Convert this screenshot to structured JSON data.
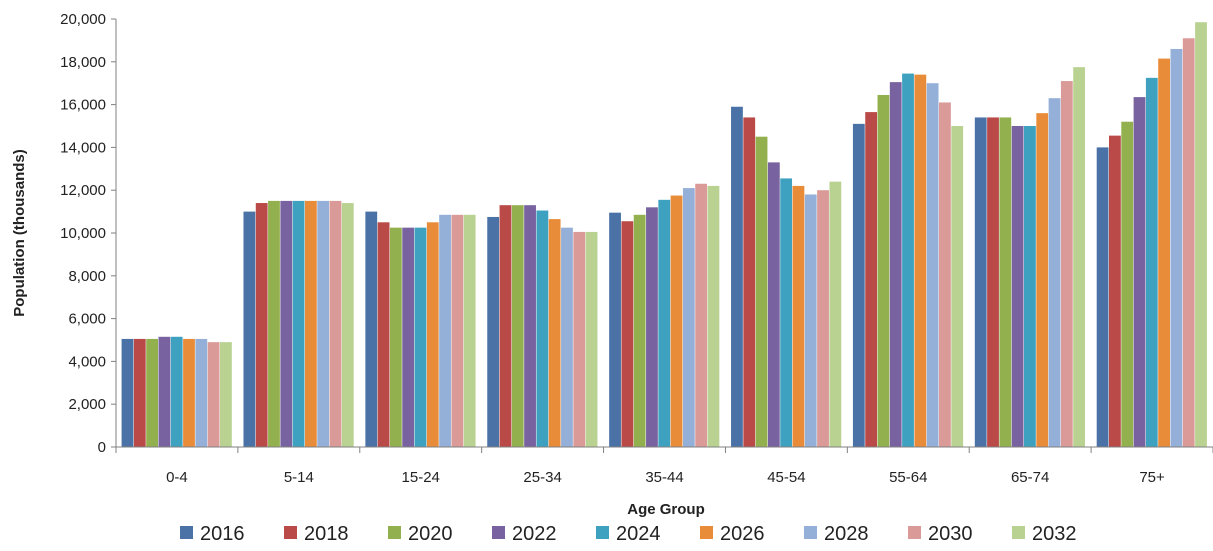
{
  "chart_data": {
    "type": "bar",
    "title": "",
    "xlabel": "Age Group",
    "ylabel": "Population (thousands)",
    "ylim": [
      0,
      20000
    ],
    "yticks": [
      0,
      2000,
      4000,
      6000,
      8000,
      10000,
      12000,
      14000,
      16000,
      18000,
      20000
    ],
    "ytick_labels": [
      "0",
      "2,000",
      "4,000",
      "6,000",
      "8,000",
      "10,000",
      "12,000",
      "14,000",
      "16,000",
      "18,000",
      "20,000"
    ],
    "grid": false,
    "legend_position": "bottom",
    "categories": [
      "0-4",
      "5-14",
      "15-24",
      "25-34",
      "35-44",
      "45-54",
      "55-64",
      "65-74",
      "75+"
    ],
    "series": [
      {
        "name": "2016",
        "color": "#4a72a6",
        "values": [
          5050,
          11000,
          11000,
          10750,
          10950,
          15900,
          15100,
          15400,
          14000
        ]
      },
      {
        "name": "2018",
        "color": "#b94a48",
        "values": [
          5050,
          11400,
          10500,
          11300,
          10550,
          15400,
          15650,
          15400,
          14550
        ]
      },
      {
        "name": "2020",
        "color": "#93b04e",
        "values": [
          5050,
          11500,
          10250,
          11300,
          10850,
          14500,
          16450,
          15400,
          15200
        ]
      },
      {
        "name": "2022",
        "color": "#7862a0",
        "values": [
          5150,
          11500,
          10250,
          11300,
          11200,
          13300,
          17050,
          15000,
          16350
        ]
      },
      {
        "name": "2024",
        "color": "#3ea1bf",
        "values": [
          5150,
          11500,
          10250,
          11050,
          11550,
          12550,
          17450,
          15000,
          17250
        ]
      },
      {
        "name": "2026",
        "color": "#e98c3a",
        "values": [
          5050,
          11500,
          10500,
          10650,
          11750,
          12200,
          17400,
          15600,
          18150
        ]
      },
      {
        "name": "2028",
        "color": "#95b0d8",
        "values": [
          5050,
          11500,
          10850,
          10250,
          12100,
          11800,
          17000,
          16300,
          18600
        ]
      },
      {
        "name": "2030",
        "color": "#d99a98",
        "values": [
          4900,
          11500,
          10850,
          10050,
          12300,
          12000,
          16100,
          17100,
          19100
        ]
      },
      {
        "name": "2032",
        "color": "#b9d291",
        "values": [
          4900,
          11400,
          10850,
          10050,
          12200,
          12400,
          15000,
          17750,
          19850
        ]
      }
    ]
  }
}
